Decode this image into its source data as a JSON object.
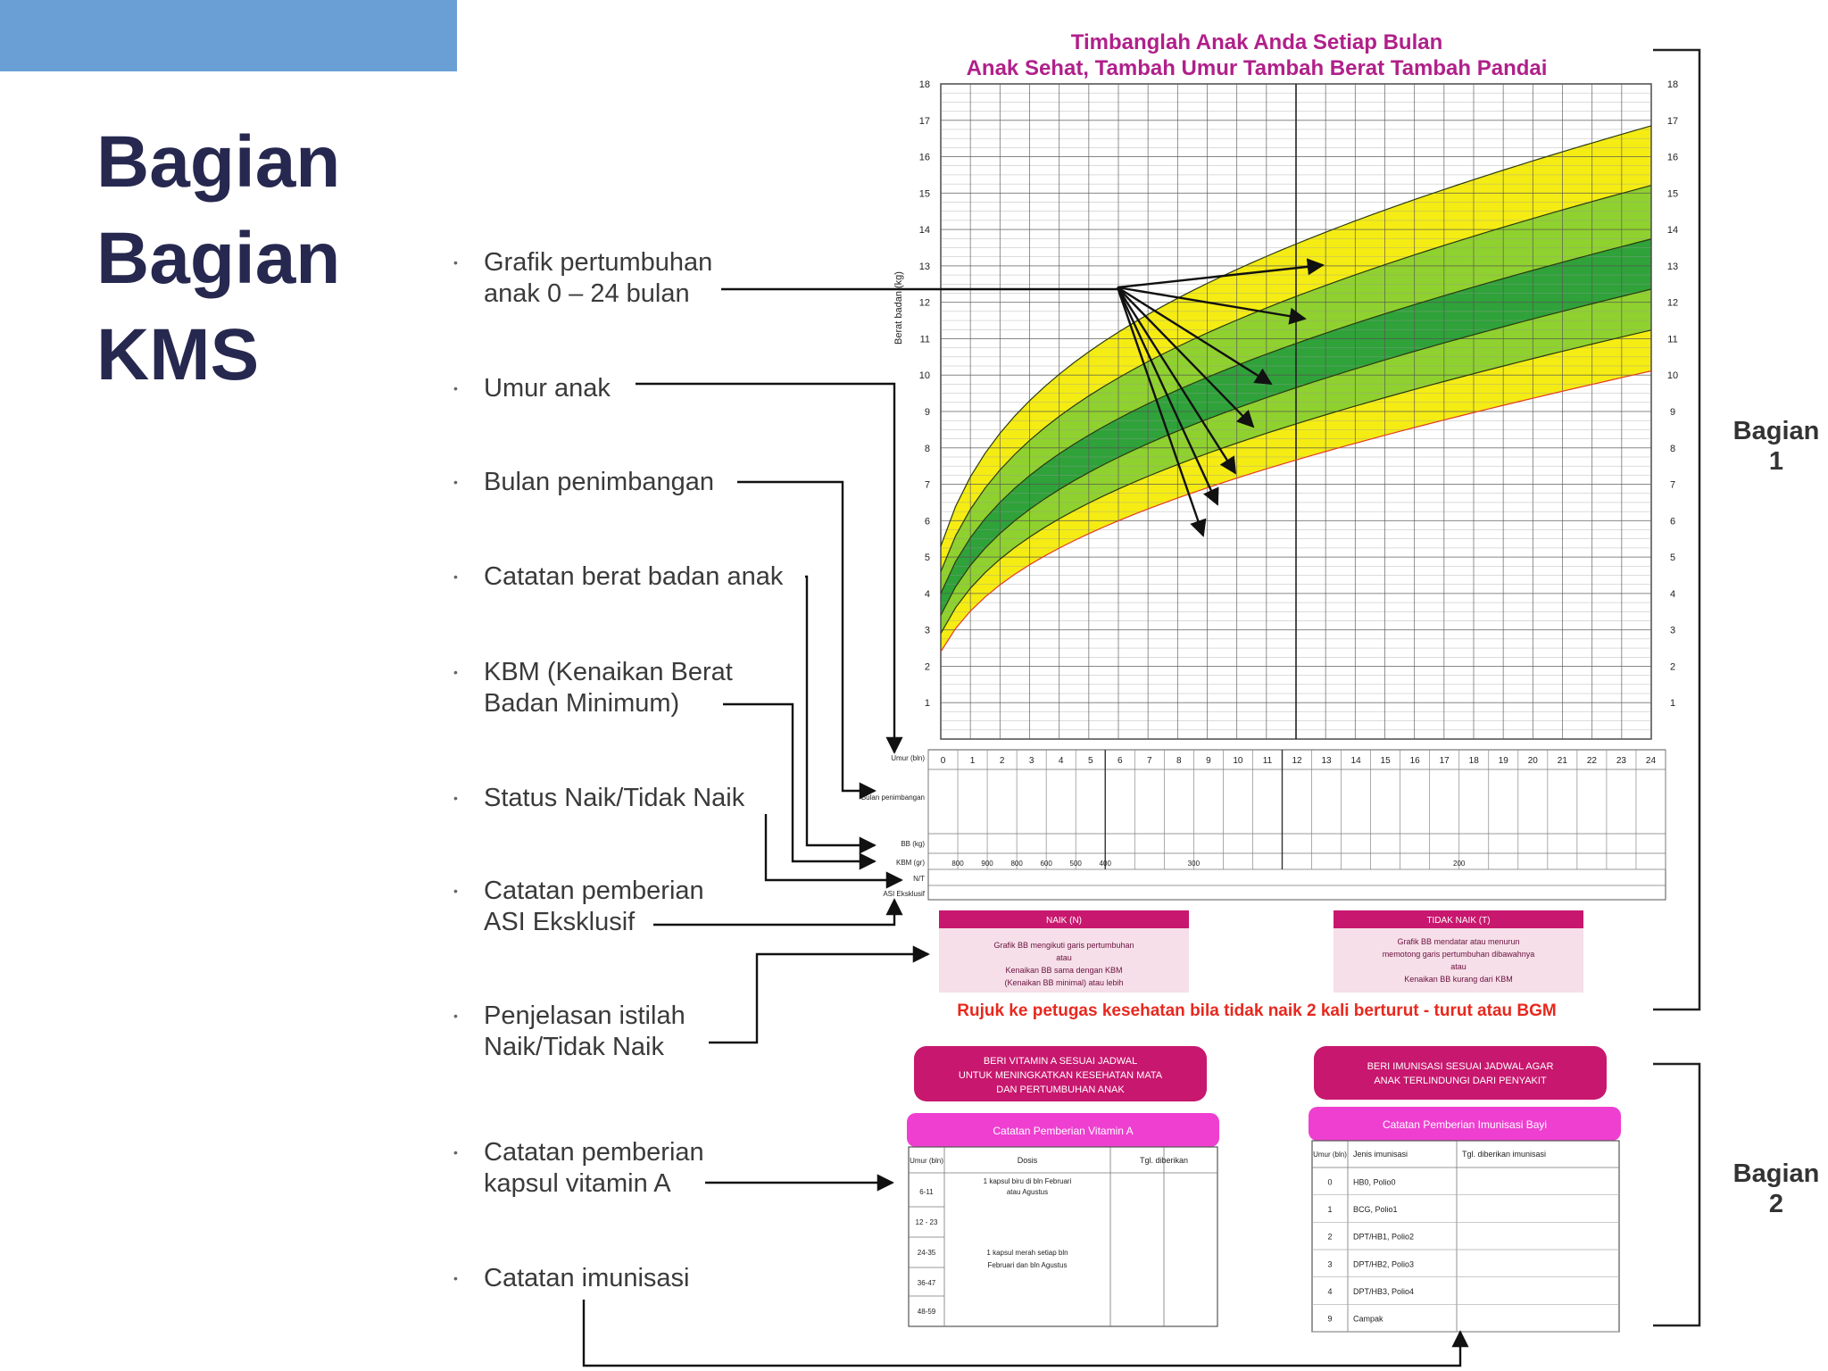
{
  "slide": {
    "title_lines": [
      "Bagian",
      "Bagian",
      "KMS"
    ],
    "accent_color": "#6a9fd6",
    "title_color": "#27284f"
  },
  "items": [
    {
      "lines": [
        "Grafik pertumbuhan",
        "anak 0 – 24 bulan"
      ]
    },
    {
      "lines": [
        "Umur anak"
      ]
    },
    {
      "lines": [
        "Bulan penimbangan"
      ]
    },
    {
      "lines": [
        "Catatan berat badan anak"
      ]
    },
    {
      "lines": [
        "KBM (Kenaikan Berat",
        "Badan Minimum)"
      ]
    },
    {
      "lines": [
        "Status Naik/Tidak Naik"
      ]
    },
    {
      "lines": [
        "Catatan pemberian",
        "ASI Eksklusif"
      ]
    },
    {
      "lines": [
        "Penjelasan istilah",
        "Naik/Tidak Naik"
      ]
    },
    {
      "lines": [
        "Catatan pemberian",
        "kapsul vitamin A"
      ]
    },
    {
      "lines": [
        "Catatan imunisasi"
      ]
    }
  ],
  "sections": [
    {
      "lines": [
        "Bagian",
        "1"
      ]
    },
    {
      "lines": [
        "Bagian",
        "2"
      ]
    }
  ],
  "kms": {
    "header_line1": "Timbanglah Anak Anda Setiap Bulan",
    "header_line2": "Anak Sehat, Tambah Umur  Tambah Berat  Tambah Pandai",
    "header_color": "#b0208a",
    "y_axis_label": "Berat badan (kg)",
    "y_ticks": [
      1,
      2,
      3,
      4,
      5,
      6,
      7,
      8,
      9,
      10,
      11,
      12,
      13,
      14,
      15,
      16,
      17,
      18
    ],
    "x_ticks": [
      0,
      1,
      2,
      3,
      4,
      5,
      6,
      7,
      8,
      9,
      10,
      11,
      12,
      13,
      14,
      15,
      16,
      17,
      18,
      19,
      20,
      21,
      22,
      23,
      24
    ],
    "row_labels": [
      "Umur (bln)",
      "Bulan penimbangan",
      "BB (kg)",
      "KBM (gr)",
      "N/T",
      "ASI Eksklusif"
    ],
    "kbm_values": [
      "800",
      "900",
      "800",
      "600",
      "500",
      "400",
      "300",
      "200"
    ],
    "naik_title": "NAIK (N)",
    "naik_text": [
      "Grafik BB mengikuti garis pertumbuhan",
      "atau",
      "Kenaikan BB sama dengan KBM",
      "(Kenaikan BB minimal) atau lebih"
    ],
    "tidak_naik_title": "TIDAK NAIK (T)",
    "tidak_naik_text": [
      "Grafik BB mendatar atau menurun",
      "memotong garis pertumbuhan dibawahnya",
      "atau",
      "Kenaikan BB kurang dari KBM"
    ],
    "referral_note": "Rujuk ke petugas kesehatan bila tidak naik 2 kali berturut - turut atau BGM",
    "vitamin_banner": [
      "BERI VITAMIN A SESUAI JADWAL",
      "UNTUK MENINGKATKAN KESEHATAN MATA",
      "DAN PERTUMBUHAN ANAK"
    ],
    "vitamin_title": "Catatan Pemberian Vitamin A",
    "vitamin_headers": [
      "Umur (bln)",
      "Dosis",
      "Tgl. diberikan"
    ],
    "vitamin_ages": [
      "6-11",
      "12 - 23",
      "24-35",
      "36-47",
      "48-59"
    ],
    "vitamin_dose_1": [
      "1 kapsul biru di bln Februari",
      "atau Agustus"
    ],
    "vitamin_dose_2": [
      "1 kapsul merah setiap bln",
      "Februari dan bln Agustus"
    ],
    "imun_banner": [
      "BERI IMUNISASI SESUAI JADWAL AGAR",
      "ANAK TERLINDUNGI DARI PENYAKIT"
    ],
    "imun_title": "Catatan Pemberian Imunisasi Bayi",
    "imun_headers": [
      "Umur (bln)",
      "Jenis imunisasi",
      "Tgl. diberikan imunisasi"
    ],
    "imun_rows": [
      {
        "age": "0",
        "name": "HB0, Polio0"
      },
      {
        "age": "1",
        "name": "BCG, Polio1"
      },
      {
        "age": "2",
        "name": "DPT/HB1, Polio2"
      },
      {
        "age": "3",
        "name": "DPT/HB2, Polio3"
      },
      {
        "age": "4",
        "name": "DPT/HB3, Polio4"
      },
      {
        "age": "9",
        "name": "Campak"
      }
    ],
    "colors": {
      "yellow": "#f5ec14",
      "light_green": "#8fd12e",
      "dark_green": "#2fa23a",
      "pink": "#c8176e",
      "magenta": "#ee3fd0",
      "red_line": "#e23d23"
    }
  }
}
